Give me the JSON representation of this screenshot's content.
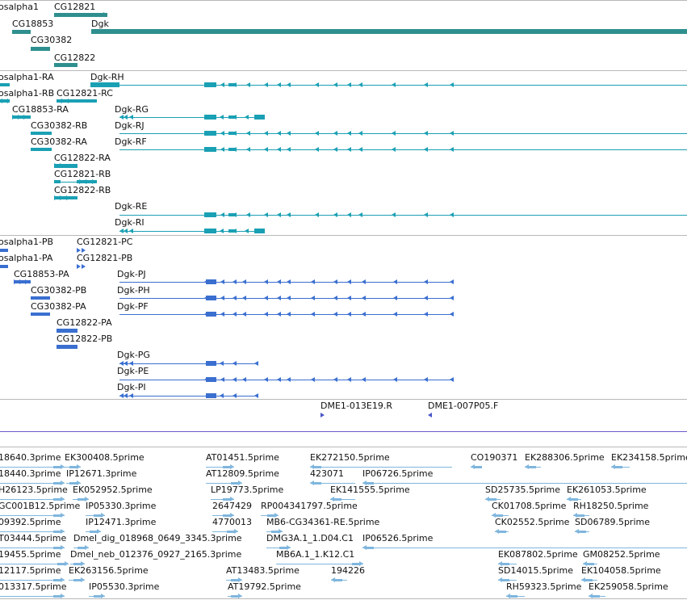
{
  "colors": {
    "gene": "#2f8f8f",
    "transcript_flybase": "#1aa0b4",
    "transcript_refseq": "#3a6fd0",
    "oligo": "#4a56c8",
    "est": "#7fb6de",
    "separator": "#b8b8b8",
    "divider": "#6a5acd"
  },
  "gene_track": {
    "features": [
      {
        "label": "osalpha1"
      },
      {
        "label": "CG12821"
      },
      {
        "label": "CG18853"
      },
      {
        "label": "Dgk"
      },
      {
        "label": "CG30382"
      },
      {
        "label": "CG12822"
      }
    ]
  },
  "flybase_transcripts": {
    "features": [
      {
        "label": "osalpha1-RA"
      },
      {
        "label": "Dgk-RH"
      },
      {
        "label": "osalpha1-RB"
      },
      {
        "label": "CG12821-RC"
      },
      {
        "label": "CG18853-RA"
      },
      {
        "label": "Dgk-RG"
      },
      {
        "label": "CG30382-RB"
      },
      {
        "label": "Dgk-RJ"
      },
      {
        "label": "CG30382-RA"
      },
      {
        "label": "Dgk-RF"
      },
      {
        "label": "CG12822-RA"
      },
      {
        "label": "CG12821-RB"
      },
      {
        "label": "CG12822-RB"
      },
      {
        "label": "Dgk-RE"
      },
      {
        "label": "Dgk-RI"
      }
    ]
  },
  "refseq_transcripts": {
    "features": [
      {
        "label": "osalpha1-PB"
      },
      {
        "label": "CG12821-PC"
      },
      {
        "label": "osalpha1-PA"
      },
      {
        "label": "CG12821-PB"
      },
      {
        "label": "CG18853-PA"
      },
      {
        "label": "Dgk-PJ"
      },
      {
        "label": "CG30382-PB"
      },
      {
        "label": "Dgk-PH"
      },
      {
        "label": "CG30382-PA"
      },
      {
        "label": "Dgk-PF"
      },
      {
        "label": "CG12822-PA"
      },
      {
        "label": "CG12822-PB"
      },
      {
        "label": "Dgk-PG"
      },
      {
        "label": "Dgk-PE"
      },
      {
        "label": "Dgk-PI"
      }
    ]
  },
  "oligo_track": {
    "features": [
      {
        "label": "DME1-013E19.R"
      },
      {
        "label": "DME1-007P05.F"
      }
    ]
  },
  "est_track": {
    "features": [
      {
        "label": "18640.3prime"
      },
      {
        "label": "EK300408.5prime"
      },
      {
        "label": "AT01451.5prime"
      },
      {
        "label": "EK272150.5prime"
      },
      {
        "label": "CO190371"
      },
      {
        "label": "EK288306.5prime"
      },
      {
        "label": "EK234158.5prime"
      },
      {
        "label": "18440.3prime"
      },
      {
        "label": "IP12671.3prime"
      },
      {
        "label": "AT12809.5prime"
      },
      {
        "label": "423071"
      },
      {
        "label": "IP06726.5prime"
      },
      {
        "label": "H26123.5prime"
      },
      {
        "label": "EK052952.5prime"
      },
      {
        "label": "LP19773.5prime"
      },
      {
        "label": "EK141555.5prime"
      },
      {
        "label": "SD25735.5prime"
      },
      {
        "label": "EK261053.5prime"
      },
      {
        "label": "GC001B12.5prime"
      },
      {
        "label": "IP05330.3prime"
      },
      {
        "label": "2647429"
      },
      {
        "label": "RP004341797.5prime"
      },
      {
        "label": "CK01708.5prime"
      },
      {
        "label": "RH18250.5prime"
      },
      {
        "label": "09392.5prime"
      },
      {
        "label": "IP12471.3prime"
      },
      {
        "label": "4770013"
      },
      {
        "label": "MB6-CG34361-RE.5prime"
      },
      {
        "label": "CK02552.5prime"
      },
      {
        "label": "SD06789.5prime"
      },
      {
        "label": "T03444.5prime"
      },
      {
        "label": "Dmel_dig_018968_0649_3345.3prime"
      },
      {
        "label": "DMG3A.1_1.D04.C1"
      },
      {
        "label": "IP06526.5prime"
      },
      {
        "label": "19455.5prime"
      },
      {
        "label": "Dmel_neb_012376_0927_2165.3prime"
      },
      {
        "label": "MB6A.1_1.K12.C1"
      },
      {
        "label": "EK087802.5prime"
      },
      {
        "label": "GM08252.5prime"
      },
      {
        "label": "12117.5prime"
      },
      {
        "label": "EK263156.5prime"
      },
      {
        "label": "AT13483.5prime"
      },
      {
        "label": "194226"
      },
      {
        "label": "SD14015.5prime"
      },
      {
        "label": "EK104058.5prime"
      },
      {
        "label": "013317.5prime"
      },
      {
        "label": "IP05530.3prime"
      },
      {
        "label": "AT19792.5prime"
      },
      {
        "label": "RH59323.5prime"
      },
      {
        "label": "EK259058.5prime"
      }
    ]
  }
}
